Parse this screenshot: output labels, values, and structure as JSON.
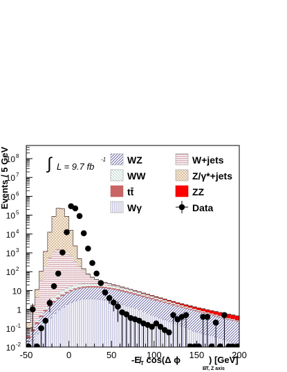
{
  "chart_data": {
    "type": "stacked-histogram",
    "xlabel": "-E̸T cos(Δ ϕ E̸T, Z axis) [GeV]",
    "xlabel_parts": {
      "prefix": "-",
      "main": "E̸",
      "sub": "T",
      "mid": " cos(Δ  ϕ",
      "sub2": "E̸T, Z axis",
      "suffix": ") [GeV]"
    },
    "ylabel": "Events / 5 GeV",
    "xlim": [
      -50,
      200
    ],
    "ylim": [
      0.01,
      500000000
    ],
    "y_log": true,
    "x_ticks": [
      -50,
      0,
      50,
      100,
      150,
      200
    ],
    "x_tick_labels": [
      "-50",
      "0",
      "50",
      "100",
      "150",
      "200"
    ],
    "y_ticks": [
      0.01,
      0.1,
      1,
      10,
      100,
      1000,
      10000,
      100000,
      1000000,
      10000000,
      100000000
    ],
    "y_tick_labels": [
      {
        "base": "10",
        "exp": "-2"
      },
      {
        "base": "10",
        "exp": "-1"
      },
      {
        "base": "1",
        "exp": ""
      },
      {
        "base": "10",
        "exp": ""
      },
      {
        "base": "10",
        "exp": "2"
      },
      {
        "base": "10",
        "exp": "3"
      },
      {
        "base": "10",
        "exp": "4"
      },
      {
        "base": "10",
        "exp": "5"
      },
      {
        "base": "10",
        "exp": "6"
      },
      {
        "base": "10",
        "exp": "7"
      },
      {
        "base": "10",
        "exp": "8"
      }
    ],
    "lumi_label": {
      "integral": "∫",
      "text": "L = 9.7 fb",
      "exp": "-1"
    },
    "bin_width": 5,
    "bin_edges_start": -50,
    "legend_position": "top-right",
    "series": [
      {
        "name": "Wγ",
        "style": "hatch-wgamma",
        "color": "#6f6fc0",
        "values": [
          0.01,
          0.02,
          0.05,
          0.1,
          0.2,
          0.35,
          0.6,
          0.9,
          1.3,
          1.8,
          2.3,
          2.8,
          3.2,
          3.5,
          3.6,
          3.6,
          3.5,
          3.3,
          3.0,
          2.7,
          2.4,
          2.1,
          1.8,
          1.5,
          1.3,
          1.1,
          0.9,
          0.75,
          0.62,
          0.5,
          0.42,
          0.35,
          0.28,
          0.23,
          0.19,
          0.16,
          0.13,
          0.11,
          0.09,
          0.07,
          0.06,
          0.05,
          0.045,
          0.04,
          0.035,
          0.03,
          0.025,
          0.02,
          0.018,
          0.015
        ]
      },
      {
        "name": "WZ",
        "style": "hatch-wz",
        "color": "#4a4aa8",
        "values": [
          0.02,
          0.05,
          0.12,
          0.3,
          0.6,
          1.1,
          1.8,
          2.8,
          4.0,
          5.5,
          7.0,
          8.5,
          9.8,
          10.8,
          11.2,
          11.4,
          11.3,
          11.0,
          10.5,
          9.8,
          9.0,
          8.2,
          7.4,
          6.6,
          5.8,
          5.1,
          4.5,
          3.9,
          3.4,
          3.0,
          2.6,
          2.3,
          2.0,
          1.75,
          1.5,
          1.3,
          1.15,
          1.0,
          0.88,
          0.78,
          0.68,
          0.6,
          0.52,
          0.46,
          0.4,
          0.35,
          0.31,
          0.27,
          0.24,
          0.21
        ]
      },
      {
        "name": "tt̄",
        "style": "solid",
        "color": "#c86464",
        "values": [
          0.01,
          0.02,
          0.04,
          0.08,
          0.15,
          0.25,
          0.4,
          0.6,
          0.85,
          1.1,
          1.35,
          1.6,
          1.8,
          1.95,
          2.05,
          2.1,
          2.1,
          2.05,
          1.95,
          1.85,
          1.7,
          1.55,
          1.4,
          1.25,
          1.1,
          0.95,
          0.82,
          0.7,
          0.6,
          0.5,
          0.42,
          0.35,
          0.29,
          0.24,
          0.2,
          0.16,
          0.13,
          0.11,
          0.09,
          0.07,
          0.06,
          0.05,
          0.04,
          0.035,
          0.03,
          0.025,
          0.02,
          0.017,
          0.014,
          0.012
        ]
      },
      {
        "name": "WW",
        "style": "hatch-ww",
        "color": "#6aa890",
        "values": [
          0.01,
          0.02,
          0.05,
          0.12,
          0.3,
          0.7,
          1.4,
          2.4,
          3.6,
          4.8,
          5.8,
          6.4,
          6.7,
          6.7,
          6.5,
          6.2,
          5.8,
          5.3,
          4.8,
          4.2,
          3.7,
          3.2,
          2.7,
          2.3,
          1.95,
          1.65,
          1.4,
          1.2,
          1.0,
          0.85,
          0.72,
          0.6,
          0.5,
          0.42,
          0.35,
          0.29,
          0.24,
          0.2,
          0.17,
          0.14,
          0.12,
          0.1,
          0.085,
          0.07,
          0.06,
          0.05,
          0.042,
          0.035,
          0.03,
          0.025
        ]
      },
      {
        "name": "W+jets",
        "style": "hatch-wjets",
        "color": "#b06070",
        "values": [
          0.05,
          0.5,
          4,
          35,
          180,
          550,
          1100,
          1500,
          1450,
          1050,
          650,
          330,
          170,
          80,
          45,
          25,
          15,
          9,
          6,
          4.2,
          3.1,
          2.3,
          1.7,
          1.3,
          1.0,
          0.8,
          0.6,
          0.45,
          0.35,
          0.27,
          0.2,
          0.15,
          0.11,
          0.08,
          0.06,
          0.05,
          0.04,
          0.03,
          0.025,
          0.02,
          0.016,
          0.013,
          0.011,
          0.009,
          0.008,
          0.007,
          0.006,
          0.005,
          0.004,
          0.004
        ]
      },
      {
        "name": "Z/γ*+jets",
        "style": "hatch-dy",
        "color": "#c8a078",
        "values": [
          0.1,
          1,
          7,
          70,
          1000,
          12000,
          85000,
          230000,
          220000,
          85000,
          15000,
          2000,
          300,
          40,
          8,
          2.5,
          1.2,
          0.6,
          0.3,
          0.2,
          0.15,
          0.1,
          0.07,
          0.05,
          0.04,
          0.03,
          0.02,
          0.015,
          0.01,
          0.01,
          0,
          0,
          0,
          0,
          0,
          0,
          0,
          0,
          0,
          0,
          0,
          0,
          0,
          0,
          0,
          0,
          0,
          0,
          0,
          0
        ]
      },
      {
        "name": "ZZ",
        "style": "solid",
        "color": "#ff0000",
        "values": [
          0,
          0,
          0,
          0,
          0,
          0,
          0,
          0,
          0.01,
          0.02,
          0.04,
          0.07,
          0.1,
          0.14,
          0.18,
          0.22,
          0.26,
          0.3,
          0.34,
          0.37,
          0.4,
          0.42,
          0.43,
          0.44,
          0.44,
          0.43,
          0.42,
          0.41,
          0.4,
          0.39,
          0.38,
          0.37,
          0.36,
          0.35,
          0.34,
          0.33,
          0.32,
          0.31,
          0.3,
          0.29,
          0.28,
          0.27,
          0.26,
          0.25,
          0.24,
          0.23,
          0.22,
          0.21,
          0.2,
          0.19
        ]
      }
    ],
    "data_points": {
      "name": "Data",
      "x": [
        -47.5,
        -42.5,
        -37.5,
        -32.5,
        -27.5,
        -22.5,
        -17.5,
        -12.5,
        -7.5,
        -2.5,
        2.5,
        7.5,
        12.5,
        17.5,
        22.5,
        27.5,
        32.5,
        37.5,
        42.5,
        47.5,
        52.5,
        57.5,
        62.5,
        67.5,
        72.5,
        77.5,
        82.5,
        87.5,
        92.5,
        97.5,
        102.5,
        107.5,
        112.5,
        117.5,
        122.5,
        127.5,
        132.5,
        137.5,
        142.5,
        147.5,
        152.5,
        157.5,
        162.5,
        167.5,
        172.5,
        177.5,
        182.5,
        187.5,
        192.5,
        197.5
      ],
      "y": [
        0.01,
        1,
        0.01,
        0.1,
        0.3,
        3,
        15,
        150,
        4000,
        60000,
        300000,
        230000,
        100000,
        12000,
        1200,
        250,
        60,
        20,
        5,
        2.5,
        1.8,
        1.4,
        1.2,
        0.9,
        0.6,
        0.5,
        0.5,
        0.3,
        0.2,
        0.15,
        0.12,
        0.1,
        0.08,
        0.07,
        0.1,
        0.06,
        0.05,
        0.03,
        0.5,
        0.01,
        0.01,
        0.01,
        0.3,
        0.01,
        0.01,
        0.01,
        0.5,
        0.01,
        0.01,
        0.01
      ],
      "y_displayed": [
        0.01,
        1,
        0.01,
        0.1,
        0.25,
        2.2,
        17,
        80,
        1050,
        12500,
        300000,
        230000,
        90000,
        11000,
        1700,
        290,
        80,
        25,
        8,
        4,
        2.3,
        1.4,
        0.7,
        0.55,
        0.35,
        0.3,
        0.25,
        0.18,
        0.15,
        0.12,
        0.18,
        0.12,
        0.08,
        0.06,
        0.5,
        0.3,
        0.4,
        0.5,
        0.01,
        0.01,
        0.01,
        0.4,
        0.4,
        0.01,
        0.2,
        0.01,
        0.5,
        0.01,
        0.01,
        0.01
      ]
    }
  }
}
